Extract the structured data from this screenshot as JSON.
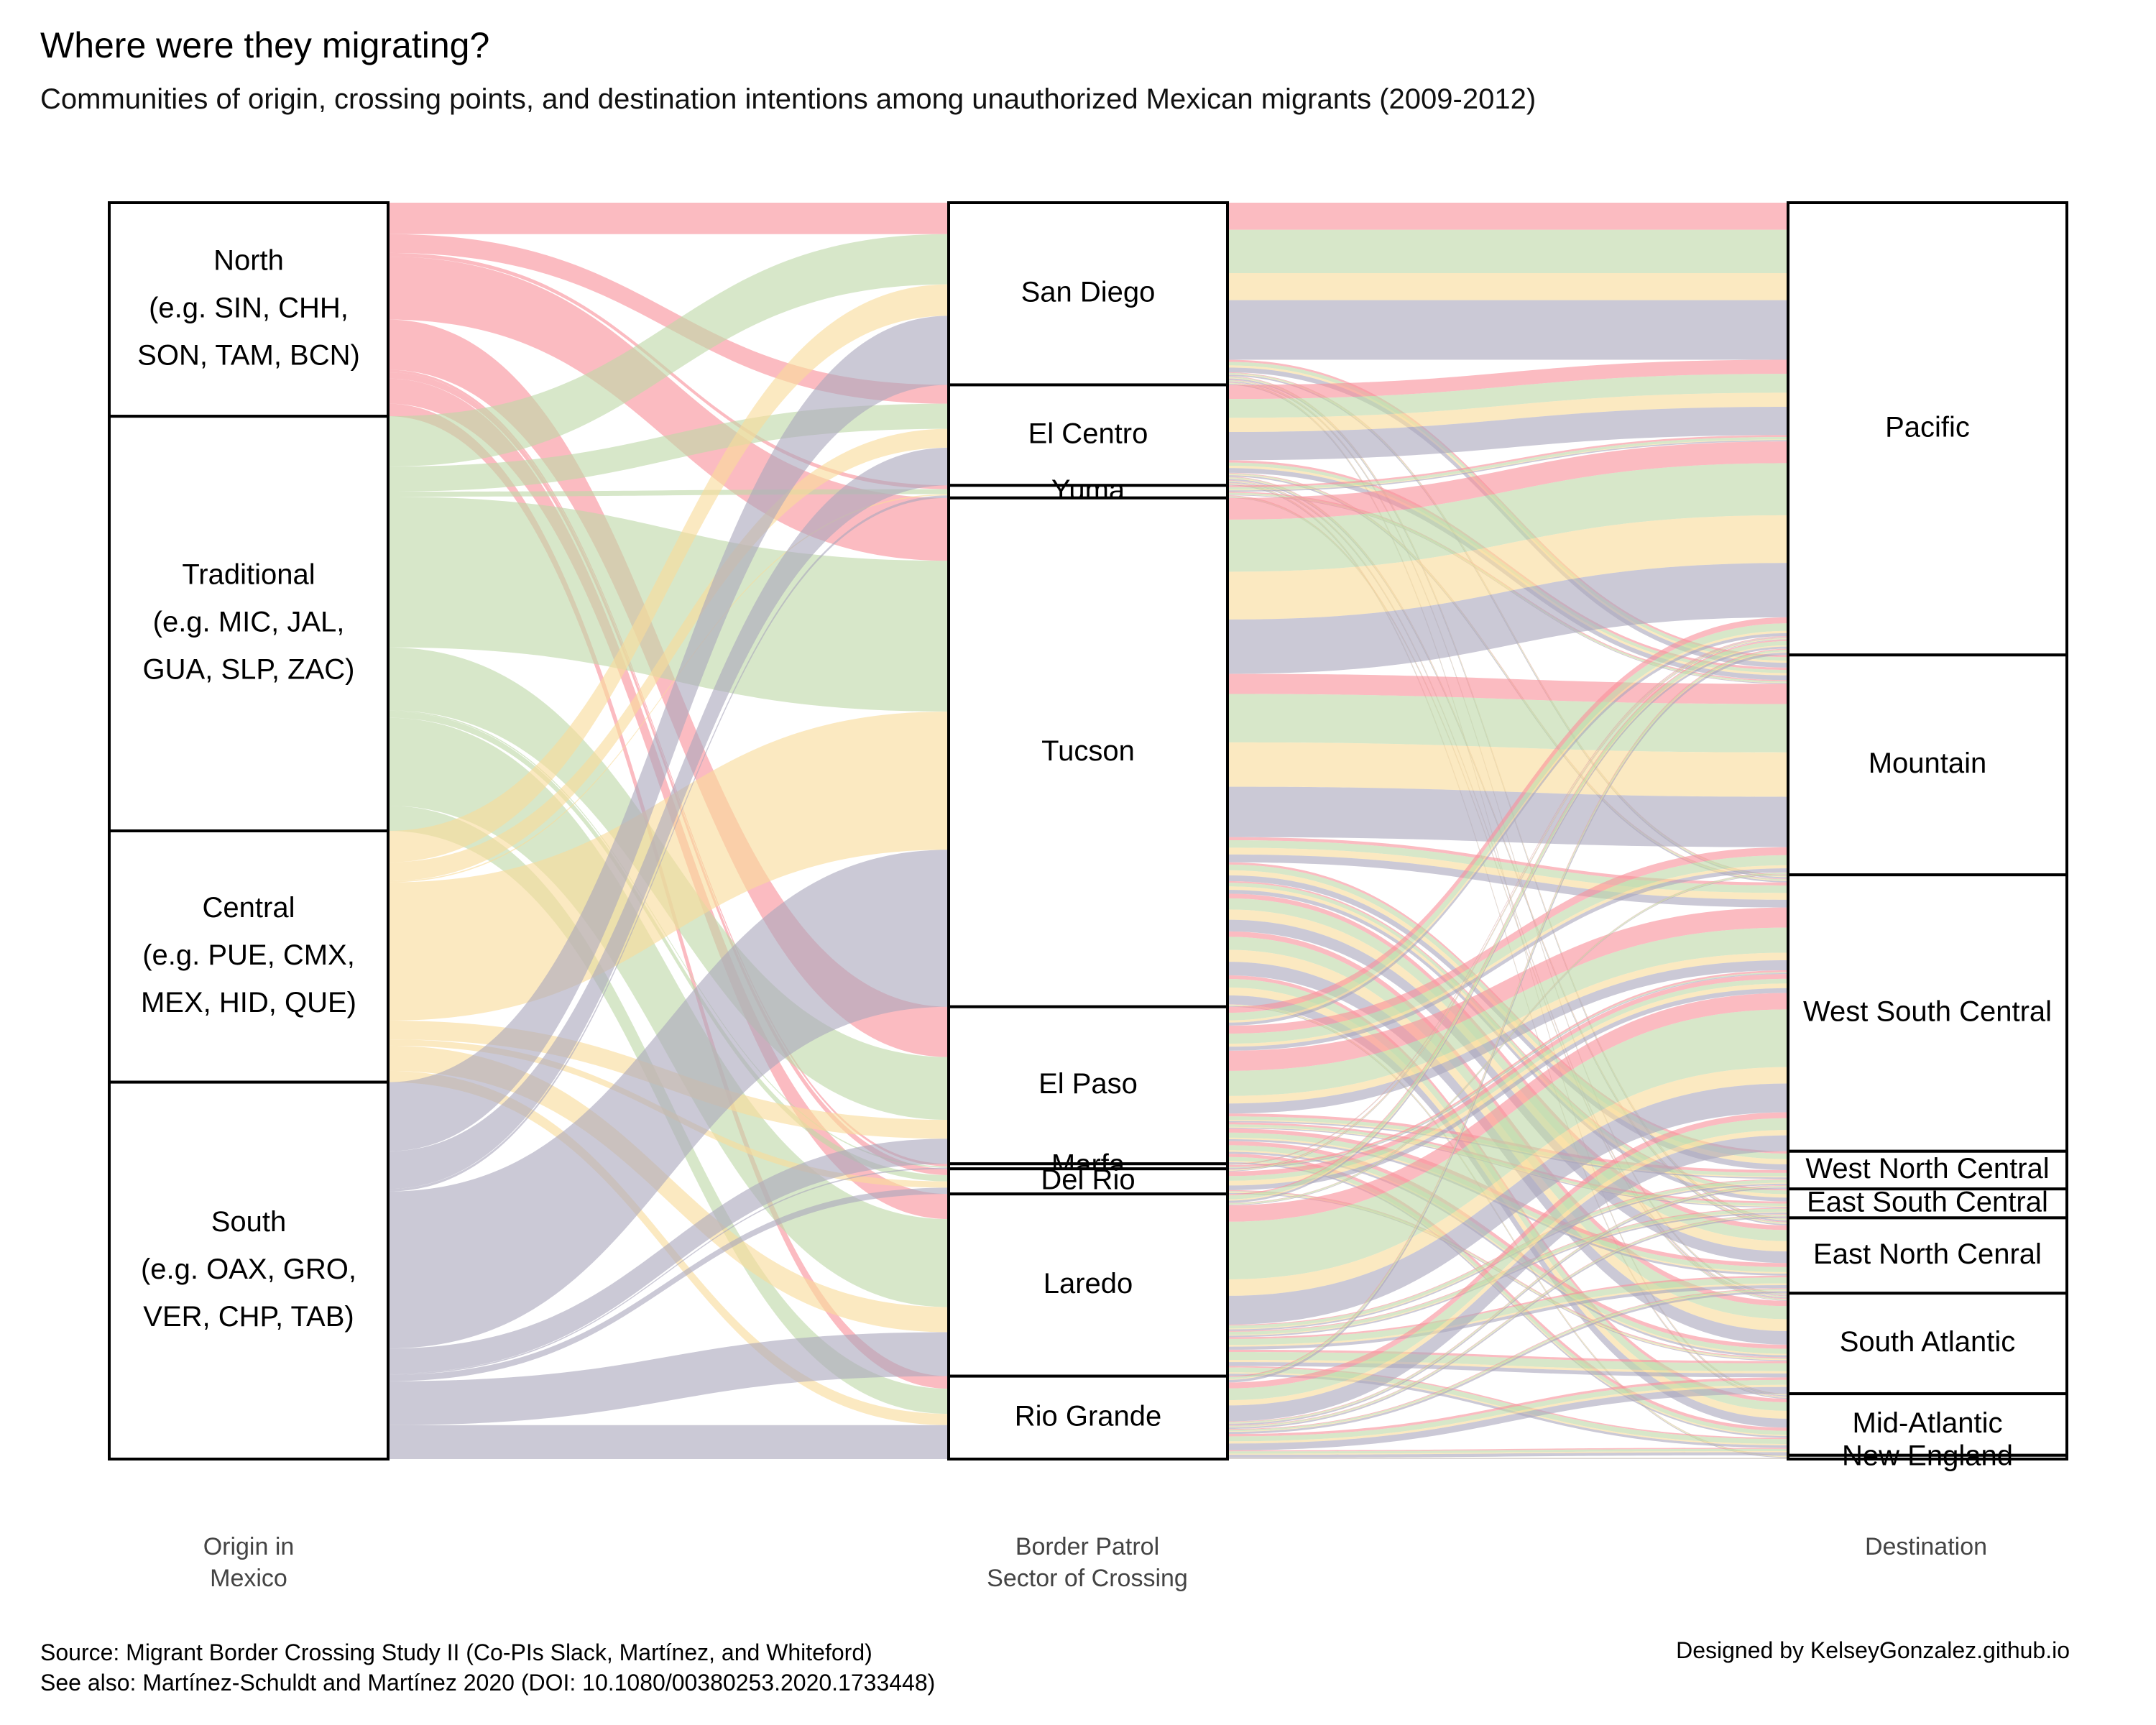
{
  "title": "Where were they migrating?",
  "subtitle": "Communities of origin, crossing points, and destination intentions among unauthorized Mexican migrants (2009-2012)",
  "axis_labels": {
    "origin": [
      "Origin in",
      "Mexico"
    ],
    "sector": [
      "Border Patrol",
      "Sector of Crossing"
    ],
    "destination": [
      "Destination"
    ]
  },
  "caption": {
    "line1": "Source: Migrant Border Crossing Study II (Co-PIs Slack, Martínez, and Whiteford)",
    "line2": "See also: Martínez-Schuldt and Martínez 2020 (DOI: 10.1080/00380253.2020.1733448)"
  },
  "credit": "Designed by KelseyGonzalez.github.io",
  "colors": {
    "North": "#f8929b",
    "Traditional": "#bfd9a8",
    "Central": "#f9dc9b",
    "South": "#aba8bd"
  },
  "chart_data": {
    "type": "alluvial",
    "axes": [
      "Origin in Mexico",
      "Border Patrol Sector of Crossing",
      "Destination"
    ],
    "strata": {
      "origin": [
        {
          "name": "North",
          "label": [
            "North",
            "(e.g. SIN, CHH,",
            "SON, TAM, BCN)"
          ],
          "value": 17
        },
        {
          "name": "Traditional",
          "label": [
            "Traditional",
            "(e.g. MIC, JAL,",
            "GUA, SLP, ZAC)"
          ],
          "value": 33
        },
        {
          "name": "Central",
          "label": [
            "Central",
            "(e.g. PUE, CMX,",
            "MEX, HID, QUE)"
          ],
          "value": 20
        },
        {
          "name": "South",
          "label": [
            "South",
            "(e.g. OAX, GRO,",
            "VER, CHP, TAB)"
          ],
          "value": 30
        }
      ],
      "sector": [
        {
          "name": "San Diego",
          "value": 14.5
        },
        {
          "name": "El Centro",
          "value": 8
        },
        {
          "name": "Yuma",
          "value": 1
        },
        {
          "name": "Tucson",
          "value": 40.5
        },
        {
          "name": "El Paso",
          "value": 12.5
        },
        {
          "name": "Marfa",
          "value": 0.4
        },
        {
          "name": "Del Rio",
          "value": 2
        },
        {
          "name": "Laredo",
          "value": 14.5
        },
        {
          "name": "Rio Grande",
          "value": 6.6
        }
      ],
      "destination": [
        {
          "name": "Pacific",
          "value": 36
        },
        {
          "name": "Mountain",
          "value": 17.5
        },
        {
          "name": "West South Central",
          "value": 22
        },
        {
          "name": "West North Central",
          "value": 3
        },
        {
          "name": "East South Central",
          "value": 2.3
        },
        {
          "name": "East North Cenral",
          "value": 6
        },
        {
          "name": "South Atlantic",
          "value": 8
        },
        {
          "name": "Mid-Atlantic",
          "value": 4.9
        },
        {
          "name": "New England",
          "value": 0.3
        }
      ]
    },
    "flows_origin_sector": [
      [
        "North",
        "San Diego",
        2.5
      ],
      [
        "North",
        "El Centro",
        1.5
      ],
      [
        "North",
        "Yuma",
        0.3
      ],
      [
        "North",
        "Tucson",
        5
      ],
      [
        "North",
        "El Paso",
        4
      ],
      [
        "North",
        "Marfa",
        0.2
      ],
      [
        "North",
        "Del Rio",
        0.5
      ],
      [
        "North",
        "Laredo",
        2
      ],
      [
        "North",
        "Rio Grande",
        1
      ],
      [
        "Traditional",
        "San Diego",
        4
      ],
      [
        "Traditional",
        "El Centro",
        2
      ],
      [
        "Traditional",
        "Yuma",
        0.4
      ],
      [
        "Traditional",
        "Tucson",
        12
      ],
      [
        "Traditional",
        "El Paso",
        5
      ],
      [
        "Traditional",
        "Marfa",
        0.1
      ],
      [
        "Traditional",
        "Del Rio",
        0.5
      ],
      [
        "Traditional",
        "Laredo",
        7
      ],
      [
        "Traditional",
        "Rio Grande",
        2
      ],
      [
        "Central",
        "San Diego",
        2.5
      ],
      [
        "Central",
        "El Centro",
        1.5
      ],
      [
        "Central",
        "Yuma",
        0.1
      ],
      [
        "Central",
        "Tucson",
        11
      ],
      [
        "Central",
        "El Paso",
        1.5
      ],
      [
        "Central",
        "Del Rio",
        0.5
      ],
      [
        "Central",
        "Laredo",
        2
      ],
      [
        "Central",
        "Rio Grande",
        0.9
      ],
      [
        "South",
        "San Diego",
        5.5
      ],
      [
        "South",
        "El Centro",
        3
      ],
      [
        "South",
        "Yuma",
        0.2
      ],
      [
        "South",
        "Tucson",
        12.5
      ],
      [
        "South",
        "El Paso",
        2
      ],
      [
        "South",
        "Marfa",
        0.1
      ],
      [
        "South",
        "Del Rio",
        0.5
      ],
      [
        "South",
        "Laredo",
        3.5
      ],
      [
        "South",
        "Rio Grande",
        2.7
      ]
    ],
    "flows_sector_destination": [
      [
        "San Diego",
        "Pacific",
        12.5
      ],
      [
        "San Diego",
        "Mountain",
        1
      ],
      [
        "San Diego",
        "West South Central",
        0.3
      ],
      [
        "San Diego",
        "East North Cenral",
        0.3
      ],
      [
        "San Diego",
        "South Atlantic",
        0.2
      ],
      [
        "San Diego",
        "Mid-Atlantic",
        0.2
      ],
      [
        "El Centro",
        "Pacific",
        6
      ],
      [
        "El Centro",
        "Mountain",
        1
      ],
      [
        "El Centro",
        "West South Central",
        0.3
      ],
      [
        "El Centro",
        "East North Cenral",
        0.3
      ],
      [
        "El Centro",
        "South Atlantic",
        0.2
      ],
      [
        "El Centro",
        "Mid-Atlantic",
        0.2
      ],
      [
        "Yuma",
        "Pacific",
        0.5
      ],
      [
        "Yuma",
        "Mountain",
        0.3
      ],
      [
        "Yuma",
        "South Atlantic",
        0.2
      ],
      [
        "Tucson",
        "Pacific",
        14
      ],
      [
        "Tucson",
        "Mountain",
        13
      ],
      [
        "Tucson",
        "West South Central",
        2
      ],
      [
        "Tucson",
        "West North Central",
        1.5
      ],
      [
        "Tucson",
        "East South Central",
        1
      ],
      [
        "Tucson",
        "East North Cenral",
        3
      ],
      [
        "Tucson",
        "South Atlantic",
        3.5
      ],
      [
        "Tucson",
        "Mid-Atlantic",
        2.3
      ],
      [
        "Tucson",
        "New England",
        0.2
      ],
      [
        "El Paso",
        "Pacific",
        1.5
      ],
      [
        "El Paso",
        "Mountain",
        2
      ],
      [
        "El Paso",
        "West South Central",
        5
      ],
      [
        "El Paso",
        "West North Central",
        0.7
      ],
      [
        "El Paso",
        "East South Central",
        0.5
      ],
      [
        "El Paso",
        "East North Cenral",
        1
      ],
      [
        "El Paso",
        "South Atlantic",
        1
      ],
      [
        "El Paso",
        "Mid-Atlantic",
        0.8
      ],
      [
        "Marfa",
        "Pacific",
        0.1
      ],
      [
        "Marfa",
        "West South Central",
        0.3
      ],
      [
        "Del Rio",
        "Pacific",
        0.2
      ],
      [
        "Del Rio",
        "West South Central",
        1.5
      ],
      [
        "Del Rio",
        "South Atlantic",
        0.3
      ],
      [
        "Laredo",
        "Pacific",
        0.7
      ],
      [
        "Laredo",
        "Mountain",
        0.2
      ],
      [
        "Laredo",
        "West South Central",
        9.5
      ],
      [
        "Laredo",
        "West North Central",
        0.5
      ],
      [
        "Laredo",
        "East South Central",
        0.5
      ],
      [
        "Laredo",
        "East North Cenral",
        1
      ],
      [
        "Laredo",
        "South Atlantic",
        1.3
      ],
      [
        "Laredo",
        "Mid-Atlantic",
        0.8
      ],
      [
        "Rio Grande",
        "Pacific",
        0.5
      ],
      [
        "Rio Grande",
        "West South Central",
        3.1
      ],
      [
        "Rio Grande",
        "West North Central",
        0.3
      ],
      [
        "Rio Grande",
        "East South Central",
        0.3
      ],
      [
        "Rio Grande",
        "East North Cenral",
        0.4
      ],
      [
        "Rio Grande",
        "South Atlantic",
        1.3
      ],
      [
        "Rio Grande",
        "Mid-Atlantic",
        0.6
      ],
      [
        "Rio Grande",
        "New England",
        0.1
      ]
    ],
    "fill_by": "origin",
    "legend": "none"
  }
}
